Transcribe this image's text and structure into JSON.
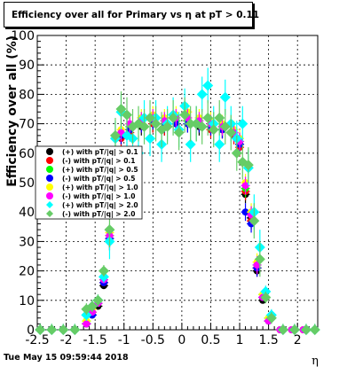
{
  "title": "Efficiency over all for Primary vs η at pT > 0.11",
  "timestamp": "Tue May 15 09:59:44 2018",
  "chart_data": {
    "type": "scatter",
    "xlabel": "η",
    "ylabel": "Efficiency over all (%)",
    "xlim": [
      -2.5,
      2.35
    ],
    "ylim": [
      0,
      100
    ],
    "x_ticks": [
      "-2.5",
      "-2",
      "-1.5",
      "-1",
      "-0.5",
      "0",
      "0.5",
      "1",
      "1.5",
      "2"
    ],
    "y_ticks": [
      "0",
      "10",
      "20",
      "30",
      "40",
      "50",
      "60",
      "70",
      "80",
      "90",
      "100"
    ],
    "grid": true,
    "legend_position": "left-middle",
    "series": [
      {
        "name": "(+) with pT/|q| > 0.1",
        "color": "#000000",
        "marker": "circle",
        "x": [
          -2.45,
          -2.25,
          -2.05,
          -1.85,
          -1.65,
          -1.55,
          -1.45,
          -1.35,
          -1.25,
          -1.15,
          -1.05,
          -0.9,
          -0.7,
          -0.5,
          -0.3,
          -0.1,
          0.1,
          0.3,
          0.5,
          0.7,
          0.9,
          1.0,
          1.1,
          1.2,
          1.3,
          1.4,
          1.5,
          1.7,
          1.9,
          2.1,
          2.3
        ],
        "y": [
          0,
          0,
          0,
          0,
          2,
          5,
          8,
          15,
          30,
          55,
          66,
          68,
          69,
          70,
          69,
          70,
          70,
          69,
          69,
          68,
          67,
          63,
          46,
          38,
          20,
          10,
          3,
          0,
          0,
          0,
          0
        ]
      },
      {
        "name": "(-) with pT/|q| > 0.1",
        "color": "#ff0000",
        "marker": "circle",
        "x": [
          -2.45,
          -2.25,
          -2.05,
          -1.85,
          -1.65,
          -1.55,
          -1.45,
          -1.35,
          -1.25,
          -1.15,
          -1.05,
          -0.9,
          -0.7,
          -0.5,
          -0.3,
          -0.1,
          0.1,
          0.3,
          0.5,
          0.7,
          0.9,
          1.0,
          1.1,
          1.2,
          1.3,
          1.4,
          1.5,
          1.7,
          1.9,
          2.1,
          2.3
        ],
        "y": [
          0,
          0,
          0,
          0,
          2,
          6,
          9,
          16,
          31,
          56,
          65,
          67,
          70,
          70,
          69,
          70,
          71,
          70,
          68,
          68,
          66,
          62,
          47,
          37,
          21,
          11,
          3,
          0,
          0,
          0,
          0
        ]
      },
      {
        "name": "(+) with pT/|q| > 0.5",
        "color": "#00ff00",
        "marker": "circle",
        "x": [
          -2.45,
          -2.25,
          -2.05,
          -1.85,
          -1.65,
          -1.55,
          -1.45,
          -1.35,
          -1.25,
          -1.15,
          -1.05,
          -0.9,
          -0.7,
          -0.5,
          -0.3,
          -0.1,
          0.1,
          0.3,
          0.5,
          0.7,
          0.9,
          1.0,
          1.1,
          1.2,
          1.3,
          1.4,
          1.5,
          1.7,
          1.9,
          2.1,
          2.3
        ],
        "y": [
          0,
          0,
          0,
          0,
          3,
          6,
          10,
          17,
          32,
          57,
          67,
          69,
          71,
          71,
          70,
          71,
          71,
          70,
          70,
          69,
          67,
          64,
          48,
          39,
          22,
          12,
          4,
          0,
          0,
          0,
          0
        ]
      },
      {
        "name": "(-) with pT/|q| > 0.5",
        "color": "#0000ff",
        "marker": "circle",
        "x": [
          -2.45,
          -2.25,
          -2.05,
          -1.85,
          -1.65,
          -1.55,
          -1.45,
          -1.35,
          -1.25,
          -1.15,
          -1.05,
          -0.9,
          -0.7,
          -0.5,
          -0.3,
          -0.1,
          0.1,
          0.3,
          0.5,
          0.7,
          0.9,
          1.0,
          1.1,
          1.2,
          1.3,
          1.4,
          1.5,
          1.7,
          1.9,
          2.1,
          2.3
        ],
        "y": [
          0,
          0,
          0,
          0,
          2,
          5,
          9,
          16,
          31,
          56,
          66,
          68,
          70,
          71,
          70,
          70,
          70,
          70,
          69,
          68,
          67,
          63,
          40,
          36,
          21,
          11,
          3,
          0,
          0,
          0,
          0
        ]
      },
      {
        "name": "(+) with pT/|q| > 1.0",
        "color": "#ffff00",
        "marker": "circle",
        "x": [
          -2.45,
          -2.25,
          -2.05,
          -1.85,
          -1.65,
          -1.55,
          -1.45,
          -1.35,
          -1.25,
          -1.15,
          -1.05,
          -0.9,
          -0.7,
          -0.5,
          -0.3,
          -0.1,
          0.1,
          0.3,
          0.5,
          0.7,
          0.9,
          1.0,
          1.1,
          1.2,
          1.3,
          1.4,
          1.5,
          1.7,
          1.9,
          2.1,
          2.3
        ],
        "y": [
          0,
          0,
          0,
          0,
          3,
          7,
          10,
          18,
          33,
          58,
          68,
          70,
          72,
          73,
          72,
          73,
          74,
          72,
          71,
          70,
          68,
          65,
          50,
          40,
          23,
          12,
          4,
          0,
          0,
          0,
          0
        ]
      },
      {
        "name": "(-) with pT/|q| > 1.0",
        "color": "#ff00ff",
        "marker": "circle",
        "x": [
          -2.45,
          -2.25,
          -2.05,
          -1.85,
          -1.65,
          -1.55,
          -1.45,
          -1.35,
          -1.25,
          -1.15,
          -1.05,
          -0.9,
          -0.7,
          -0.5,
          -0.3,
          -0.1,
          0.1,
          0.3,
          0.5,
          0.7,
          0.9,
          1.0,
          1.1,
          1.2,
          1.3,
          1.4,
          1.5,
          1.7,
          1.9,
          2.1,
          2.3
        ],
        "y": [
          0,
          0,
          0,
          0,
          2,
          6,
          9,
          17,
          32,
          57,
          67,
          70,
          71,
          72,
          71,
          72,
          72,
          71,
          70,
          69,
          67,
          64,
          49,
          39,
          22,
          11,
          3,
          0,
          0,
          0,
          0
        ]
      },
      {
        "name": "(+) with pT/|q| > 2.0",
        "color": "#00ffff",
        "marker": "diamond",
        "x": [
          -2.45,
          -2.25,
          -2.05,
          -1.85,
          -1.65,
          -1.55,
          -1.45,
          -1.35,
          -1.25,
          -1.15,
          -1.05,
          -0.95,
          -0.85,
          -0.75,
          -0.65,
          -0.55,
          -0.45,
          -0.35,
          -0.25,
          -0.15,
          -0.05,
          0.05,
          0.15,
          0.25,
          0.35,
          0.45,
          0.55,
          0.65,
          0.75,
          0.85,
          0.95,
          1.05,
          1.15,
          1.25,
          1.35,
          1.45,
          1.55,
          1.75,
          1.95,
          2.15,
          2.3
        ],
        "y": [
          0,
          0,
          0,
          0,
          5,
          8,
          10,
          18,
          30,
          65,
          74,
          66,
          65,
          60,
          72,
          65,
          72,
          63,
          70,
          73,
          68,
          76,
          63,
          70,
          80,
          83,
          70,
          63,
          79,
          70,
          65,
          70,
          55,
          40,
          28,
          13,
          5,
          0,
          0,
          0,
          0
        ]
      },
      {
        "name": "(-) with pT/|q| > 2.0",
        "color": "#66cc66",
        "marker": "diamond",
        "x": [
          -2.45,
          -2.25,
          -2.05,
          -1.85,
          -1.65,
          -1.55,
          -1.45,
          -1.35,
          -1.25,
          -1.15,
          -1.05,
          -0.95,
          -0.85,
          -0.75,
          -0.65,
          -0.55,
          -0.45,
          -0.35,
          -0.25,
          -0.15,
          -0.05,
          0.05,
          0.15,
          0.25,
          0.35,
          0.45,
          0.55,
          0.65,
          0.75,
          0.85,
          0.95,
          1.05,
          1.15,
          1.25,
          1.35,
          1.45,
          1.55,
          1.75,
          1.95,
          2.15,
          2.3
        ],
        "y": [
          0,
          0,
          0,
          0,
          7,
          8,
          10,
          20,
          34,
          66,
          75,
          73,
          69,
          70,
          69,
          72,
          70,
          68,
          69,
          72,
          67,
          73,
          70,
          70,
          69,
          72,
          68,
          72,
          69,
          67,
          60,
          57,
          56,
          37,
          24,
          11,
          4,
          0,
          0,
          0,
          0
        ]
      }
    ]
  }
}
